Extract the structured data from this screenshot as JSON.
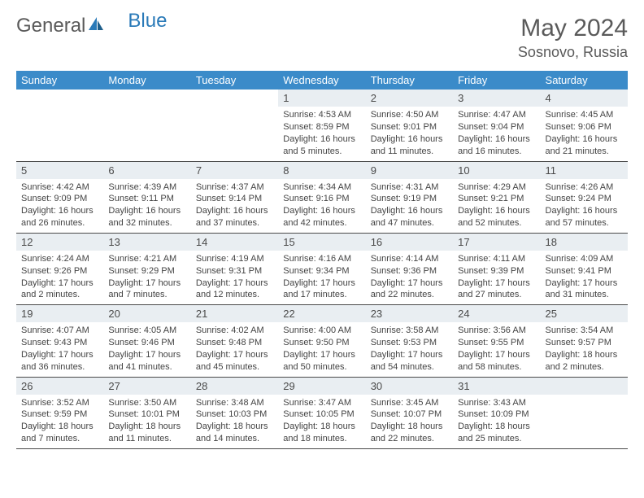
{
  "logo": {
    "general": "General",
    "blue": "Blue"
  },
  "title": {
    "month": "May 2024",
    "location": "Sosnovo, Russia"
  },
  "colors": {
    "header_bg": "#3b8bc9",
    "header_text": "#ffffff",
    "daynum_bg": "#e9eef2",
    "border": "#4a4a4a",
    "logo_blue": "#2a7ab8",
    "text": "#333333"
  },
  "weekdays": [
    "Sunday",
    "Monday",
    "Tuesday",
    "Wednesday",
    "Thursday",
    "Friday",
    "Saturday"
  ],
  "first_weekday": 3,
  "days": [
    {
      "n": 1,
      "sr": "4:53 AM",
      "ss": "8:59 PM",
      "dl": "16 hours and 5 minutes."
    },
    {
      "n": 2,
      "sr": "4:50 AM",
      "ss": "9:01 PM",
      "dl": "16 hours and 11 minutes."
    },
    {
      "n": 3,
      "sr": "4:47 AM",
      "ss": "9:04 PM",
      "dl": "16 hours and 16 minutes."
    },
    {
      "n": 4,
      "sr": "4:45 AM",
      "ss": "9:06 PM",
      "dl": "16 hours and 21 minutes."
    },
    {
      "n": 5,
      "sr": "4:42 AM",
      "ss": "9:09 PM",
      "dl": "16 hours and 26 minutes."
    },
    {
      "n": 6,
      "sr": "4:39 AM",
      "ss": "9:11 PM",
      "dl": "16 hours and 32 minutes."
    },
    {
      "n": 7,
      "sr": "4:37 AM",
      "ss": "9:14 PM",
      "dl": "16 hours and 37 minutes."
    },
    {
      "n": 8,
      "sr": "4:34 AM",
      "ss": "9:16 PM",
      "dl": "16 hours and 42 minutes."
    },
    {
      "n": 9,
      "sr": "4:31 AM",
      "ss": "9:19 PM",
      "dl": "16 hours and 47 minutes."
    },
    {
      "n": 10,
      "sr": "4:29 AM",
      "ss": "9:21 PM",
      "dl": "16 hours and 52 minutes."
    },
    {
      "n": 11,
      "sr": "4:26 AM",
      "ss": "9:24 PM",
      "dl": "16 hours and 57 minutes."
    },
    {
      "n": 12,
      "sr": "4:24 AM",
      "ss": "9:26 PM",
      "dl": "17 hours and 2 minutes."
    },
    {
      "n": 13,
      "sr": "4:21 AM",
      "ss": "9:29 PM",
      "dl": "17 hours and 7 minutes."
    },
    {
      "n": 14,
      "sr": "4:19 AM",
      "ss": "9:31 PM",
      "dl": "17 hours and 12 minutes."
    },
    {
      "n": 15,
      "sr": "4:16 AM",
      "ss": "9:34 PM",
      "dl": "17 hours and 17 minutes."
    },
    {
      "n": 16,
      "sr": "4:14 AM",
      "ss": "9:36 PM",
      "dl": "17 hours and 22 minutes."
    },
    {
      "n": 17,
      "sr": "4:11 AM",
      "ss": "9:39 PM",
      "dl": "17 hours and 27 minutes."
    },
    {
      "n": 18,
      "sr": "4:09 AM",
      "ss": "9:41 PM",
      "dl": "17 hours and 31 minutes."
    },
    {
      "n": 19,
      "sr": "4:07 AM",
      "ss": "9:43 PM",
      "dl": "17 hours and 36 minutes."
    },
    {
      "n": 20,
      "sr": "4:05 AM",
      "ss": "9:46 PM",
      "dl": "17 hours and 41 minutes."
    },
    {
      "n": 21,
      "sr": "4:02 AM",
      "ss": "9:48 PM",
      "dl": "17 hours and 45 minutes."
    },
    {
      "n": 22,
      "sr": "4:00 AM",
      "ss": "9:50 PM",
      "dl": "17 hours and 50 minutes."
    },
    {
      "n": 23,
      "sr": "3:58 AM",
      "ss": "9:53 PM",
      "dl": "17 hours and 54 minutes."
    },
    {
      "n": 24,
      "sr": "3:56 AM",
      "ss": "9:55 PM",
      "dl": "17 hours and 58 minutes."
    },
    {
      "n": 25,
      "sr": "3:54 AM",
      "ss": "9:57 PM",
      "dl": "18 hours and 2 minutes."
    },
    {
      "n": 26,
      "sr": "3:52 AM",
      "ss": "9:59 PM",
      "dl": "18 hours and 7 minutes."
    },
    {
      "n": 27,
      "sr": "3:50 AM",
      "ss": "10:01 PM",
      "dl": "18 hours and 11 minutes."
    },
    {
      "n": 28,
      "sr": "3:48 AM",
      "ss": "10:03 PM",
      "dl": "18 hours and 14 minutes."
    },
    {
      "n": 29,
      "sr": "3:47 AM",
      "ss": "10:05 PM",
      "dl": "18 hours and 18 minutes."
    },
    {
      "n": 30,
      "sr": "3:45 AM",
      "ss": "10:07 PM",
      "dl": "18 hours and 22 minutes."
    },
    {
      "n": 31,
      "sr": "3:43 AM",
      "ss": "10:09 PM",
      "dl": "18 hours and 25 minutes."
    }
  ],
  "labels": {
    "sunrise": "Sunrise:",
    "sunset": "Sunset:",
    "daylight": "Daylight:"
  }
}
